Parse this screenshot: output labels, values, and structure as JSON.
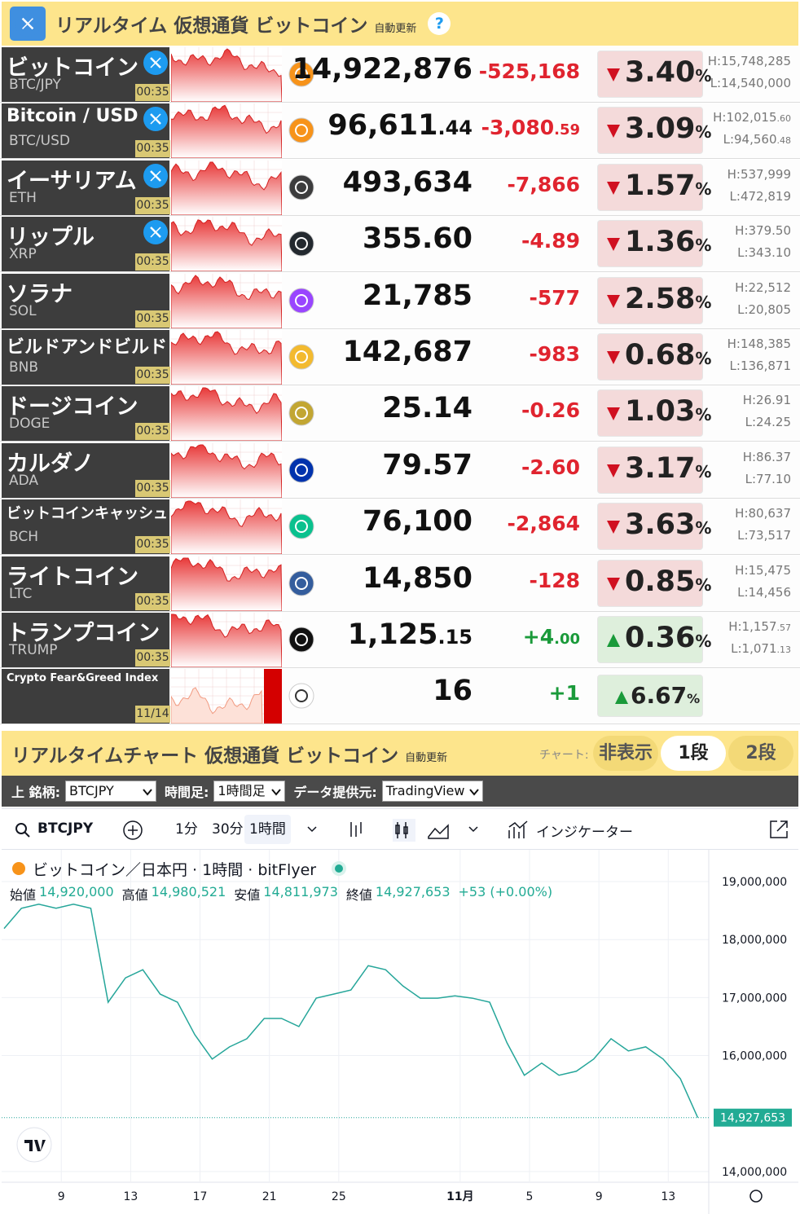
{
  "header": {
    "title": "リアルタイム 仮想通貨 ビットコイン",
    "badge": "自動更新",
    "help": "?"
  },
  "rows": [
    {
      "name": "ビットコイン",
      "symbol": "BTC/JPY",
      "time": "00:35",
      "price": "14,922,876",
      "change": "-525,168",
      "percent": "3.40%",
      "direction": "down",
      "high": "H:15,748,285",
      "low": "L:14,540,000",
      "x_icon": true,
      "small_decimals": false,
      "icon_color": "#f7931a"
    },
    {
      "name": "Bitcoin / USD",
      "symbol": "BTC/USD",
      "time": "00:35",
      "price": "96,611.44",
      "change": "-3,080.59",
      "percent": "3.09%",
      "direction": "down",
      "high": "H:102,015.60",
      "low": "L:94,560.48",
      "x_icon": true,
      "small_decimals": true,
      "icon_color": "#f7931a"
    },
    {
      "name": "イーサリアム",
      "symbol": "ETH",
      "time": "00:35",
      "price": "493,634",
      "change": "-7,866",
      "percent": "1.57%",
      "direction": "down",
      "high": "H:537,999",
      "low": "L:472,819",
      "x_icon": true,
      "small_decimals": false,
      "icon_color": "#3c3c3d"
    },
    {
      "name": "リップル",
      "symbol": "XRP",
      "time": "00:35",
      "price": "355.60",
      "change": "-4.89",
      "percent": "1.36%",
      "direction": "down",
      "high": "H:379.50",
      "low": "L:343.10",
      "x_icon": true,
      "small_decimals": false,
      "icon_color": "#23292f"
    },
    {
      "name": "ソラナ",
      "symbol": "SOL",
      "time": "00:35",
      "price": "21,785",
      "change": "-577",
      "percent": "2.58%",
      "direction": "down",
      "high": "H:22,512",
      "low": "L:20,805",
      "x_icon": false,
      "small_decimals": false,
      "icon_color": "#9945ff"
    },
    {
      "name": "ビルドアンドビルド",
      "symbol": "BNB",
      "time": "00:35",
      "price": "142,687",
      "change": "-983",
      "percent": "0.68%",
      "direction": "down",
      "high": "H:148,385",
      "low": "L:136,871",
      "x_icon": false,
      "small_decimals": false,
      "icon_color": "#f3ba2f"
    },
    {
      "name": "ドージコイン",
      "symbol": "DOGE",
      "time": "00:35",
      "price": "25.14",
      "change": "-0.26",
      "percent": "1.03%",
      "direction": "down",
      "high": "H:26.91",
      "low": "L:24.25",
      "x_icon": false,
      "small_decimals": false,
      "icon_color": "#c2a633"
    },
    {
      "name": "カルダノ",
      "symbol": "ADA",
      "time": "00:35",
      "price": "79.57",
      "change": "-2.60",
      "percent": "3.17%",
      "direction": "down",
      "high": "H:86.37",
      "low": "L:77.10",
      "x_icon": false,
      "small_decimals": false,
      "icon_color": "#0033ad"
    },
    {
      "name": "ビットコインキャッシュ",
      "symbol": "BCH",
      "time": "00:35",
      "price": "76,100",
      "change": "-2,864",
      "percent": "3.63%",
      "direction": "down",
      "high": "H:80,637",
      "low": "L:73,517",
      "x_icon": false,
      "small_decimals": false,
      "icon_color": "#0ac18e"
    },
    {
      "name": "ライトコイン",
      "symbol": "LTC",
      "time": "00:35",
      "price": "14,850",
      "change": "-128",
      "percent": "0.85%",
      "direction": "down",
      "high": "H:15,475",
      "low": "L:14,456",
      "x_icon": false,
      "small_decimals": false,
      "icon_color": "#345d9d"
    },
    {
      "name": "トランプコイン",
      "symbol": "TRUMP",
      "time": "00:35",
      "price": "1,125.15",
      "change": "+4.00",
      "percent": "0.36%",
      "direction": "up",
      "high": "H:1,157.57",
      "low": "L:1,071.13",
      "x_icon": false,
      "small_decimals": true,
      "icon_color": "#111111"
    },
    {
      "name": "Crypto Fear&Greed Index",
      "time": "11/14",
      "price": "16",
      "change": "+1",
      "percent": "6.67%",
      "direction": "up",
      "x_icon": false,
      "small_decimals": false,
      "icon_color": "#ffffff"
    }
  ],
  "section": {
    "title": "リアルタイムチャート 仮想通貨 ビットコイン",
    "badge": "自動更新",
    "chart_label": "チャート:",
    "buttons": [
      "非表示",
      "1段",
      "2段"
    ],
    "active_button": 1
  },
  "controls": {
    "symbol_label": "上 銘柄:",
    "symbol": "BTCJPY",
    "interval_label": "時間足:",
    "interval": "1時間足",
    "provider_label": "データ提供元:",
    "provider": "TradingView"
  },
  "toolbar": {
    "symbol": "BTCJPY",
    "intervals": [
      "1分",
      "30分",
      "1時間"
    ],
    "active_interval": 2,
    "indicators": "インジケーター"
  },
  "chart": {
    "type": "line",
    "legend": "ビットコイン／日本円 · 1時間 · bitFlyer",
    "ohlc": [
      {
        "label": "始値",
        "value": "14,920,000"
      },
      {
        "label": "高値",
        "value": "14,980,521"
      },
      {
        "label": "安値",
        "value": "14,811,973"
      },
      {
        "label": "終値",
        "value": "14,927,653"
      }
    ],
    "change": "+53 (+0.00%)",
    "last_label": "14,927,653",
    "color": "#26a69a",
    "values": [
      18190000,
      18540000,
      18610000,
      18540000,
      18610000,
      18540000,
      16920000,
      17340000,
      17480000,
      17060000,
      16920000,
      16360000,
      15940000,
      16150000,
      16290000,
      16640000,
      16640000,
      16500000,
      16990000,
      17060000,
      17130000,
      17550000,
      17480000,
      17200000,
      16990000,
      16990000,
      17030000,
      16990000,
      16920000,
      16220000,
      15660000,
      15870000,
      15660000,
      15730000,
      15940000,
      16290000,
      16080000,
      16150000,
      15940000,
      15600000,
      14930000
    ],
    "xlim": [
      0,
      40.4
    ],
    "ylim": [
      13830000,
      19520000
    ],
    "yticks": [
      {
        "value": 14000000,
        "label": "14,000,000"
      },
      {
        "value": 16000000,
        "label": "16,000,000"
      },
      {
        "value": 17000000,
        "label": "17,000,000"
      },
      {
        "value": 18000000,
        "label": "18,000,000"
      },
      {
        "value": 19000000,
        "label": "19,000,000"
      }
    ],
    "xticks": [
      {
        "value": 3.3,
        "label": "9"
      },
      {
        "value": 7.3,
        "label": "13"
      },
      {
        "value": 11.3,
        "label": "17"
      },
      {
        "value": 15.3,
        "label": "21"
      },
      {
        "value": 19.3,
        "label": "25"
      },
      {
        "value": 26.3,
        "label": "11月"
      },
      {
        "value": 30.3,
        "label": "5"
      },
      {
        "value": 34.3,
        "label": "9"
      },
      {
        "value": 38.3,
        "label": "13"
      }
    ],
    "grid": true
  }
}
